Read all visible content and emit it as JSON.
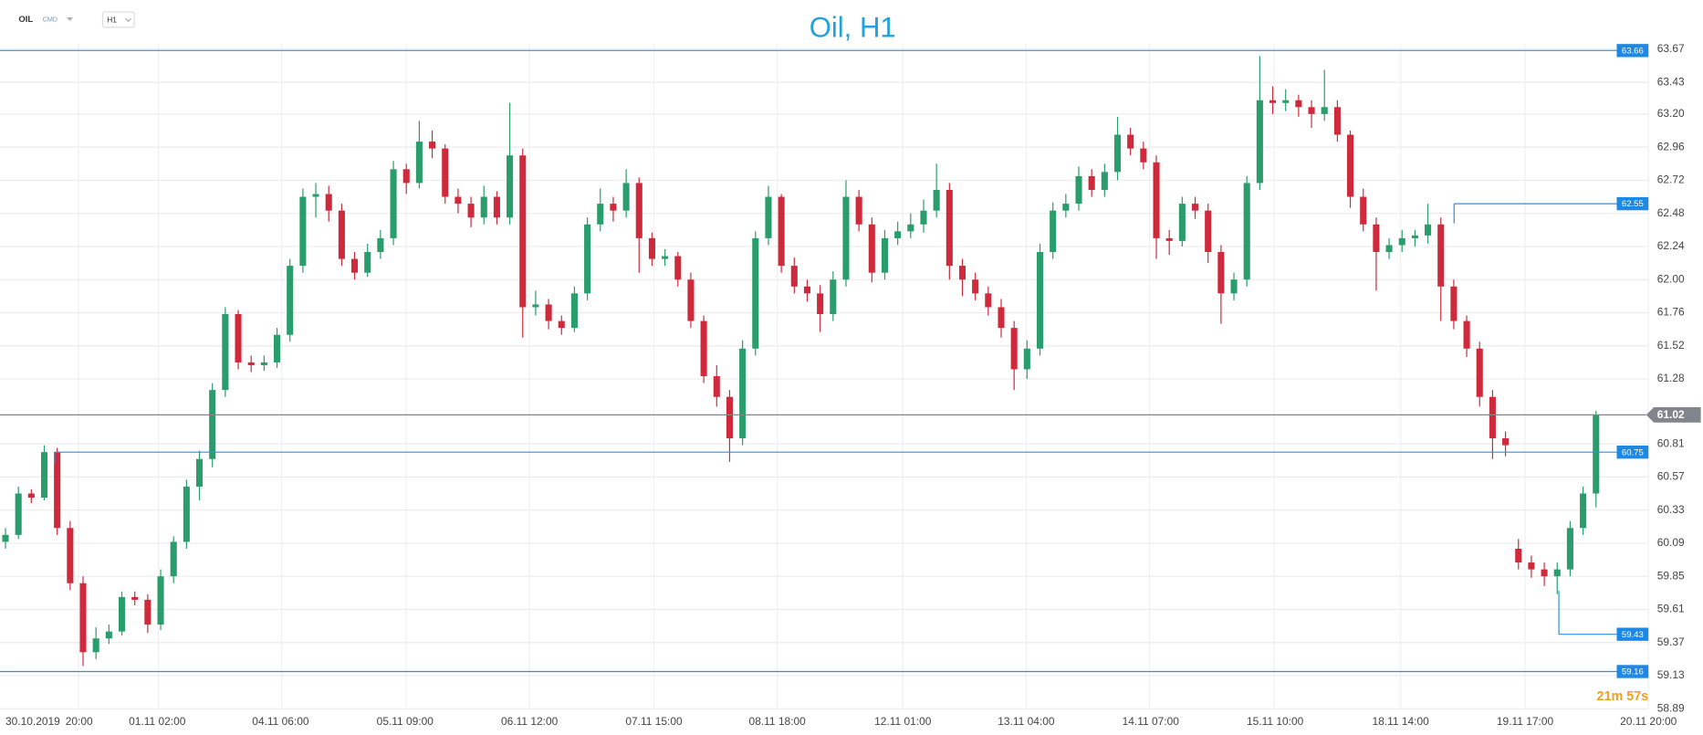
{
  "header": {
    "symbol": "OIL",
    "market": "CMD",
    "interval": "H1"
  },
  "countdown": "21m 57s",
  "chart_data": {
    "type": "candlestick",
    "title": "Oil, H1",
    "ylim": [
      58.89,
      63.67
    ],
    "yticks": [
      58.89,
      59.13,
      59.37,
      59.61,
      59.85,
      60.09,
      60.33,
      60.57,
      60.81,
      61.28,
      61.52,
      61.76,
      {
        "value": 62.0,
        "label": "62.00"
      },
      62.24,
      62.48,
      62.72,
      62.96,
      {
        "value": 63.2,
        "label": "63.20"
      },
      63.43,
      63.67
    ],
    "x_labels": [
      "30.10.2019",
      "20:00",
      "01.11  02:00",
      "04.11  06:00",
      "05.11  09:00",
      "06.11  12:00",
      "07.11  15:00",
      "08.11  18:00",
      "12.11  01:00",
      "13.11  04:00",
      "14.11  07:00",
      "15.11  10:00",
      "18.11  14:00",
      "19.11  17:00",
      "20.11  20:00"
    ],
    "up_color": "#2a9d6c",
    "down_color": "#cf2a3c",
    "level_color": "#2f8fe0",
    "levels": [
      63.66,
      62.55,
      60.75,
      59.43,
      59.16
    ],
    "current": 61.02,
    "current_color": "#80848c",
    "grid": true,
    "candles": [
      [
        60.1,
        60.2,
        60.05,
        60.15
      ],
      [
        60.15,
        60.5,
        60.12,
        60.45
      ],
      [
        60.45,
        60.48,
        60.38,
        60.42
      ],
      [
        60.42,
        60.8,
        60.4,
        60.75
      ],
      [
        60.75,
        60.78,
        60.15,
        60.2
      ],
      [
        60.2,
        60.25,
        59.75,
        59.8
      ],
      [
        59.8,
        59.85,
        59.2,
        59.3
      ],
      [
        59.3,
        59.48,
        59.25,
        59.4
      ],
      [
        59.4,
        59.5,
        59.36,
        59.45
      ],
      [
        59.45,
        59.74,
        59.42,
        59.7
      ],
      [
        59.7,
        59.74,
        59.64,
        59.68
      ],
      [
        59.68,
        59.72,
        59.44,
        59.5
      ],
      [
        59.5,
        59.9,
        59.46,
        59.85
      ],
      [
        59.85,
        60.14,
        59.8,
        60.1
      ],
      [
        60.1,
        60.55,
        60.05,
        60.5
      ],
      [
        60.5,
        60.76,
        60.4,
        60.7
      ],
      [
        60.7,
        61.25,
        60.64,
        61.2
      ],
      [
        61.2,
        61.8,
        61.15,
        61.75
      ],
      [
        61.75,
        61.78,
        61.35,
        61.4
      ],
      [
        61.4,
        61.45,
        61.33,
        61.38
      ],
      [
        61.38,
        61.45,
        61.34,
        61.4
      ],
      [
        61.4,
        61.65,
        61.36,
        61.6
      ],
      [
        61.6,
        62.15,
        61.55,
        62.1
      ],
      [
        62.1,
        62.66,
        62.05,
        62.6
      ],
      [
        62.6,
        62.7,
        62.45,
        62.62
      ],
      [
        62.62,
        62.68,
        62.42,
        62.5
      ],
      [
        62.5,
        62.55,
        62.1,
        62.15
      ],
      [
        62.15,
        62.2,
        62.0,
        62.05
      ],
      [
        62.05,
        62.26,
        62.02,
        62.2
      ],
      [
        62.2,
        62.36,
        62.15,
        62.3
      ],
      [
        62.3,
        62.86,
        62.25,
        62.8
      ],
      [
        62.8,
        62.84,
        62.62,
        62.7
      ],
      [
        62.7,
        63.15,
        62.66,
        63.0
      ],
      [
        63.0,
        63.08,
        62.88,
        62.95
      ],
      [
        62.95,
        62.98,
        62.55,
        62.6
      ],
      [
        62.6,
        62.66,
        62.48,
        62.55
      ],
      [
        62.55,
        62.6,
        62.38,
        62.45
      ],
      [
        62.45,
        62.68,
        62.4,
        62.6
      ],
      [
        62.6,
        62.64,
        62.4,
        62.45
      ],
      [
        62.45,
        63.28,
        62.4,
        62.9
      ],
      [
        62.9,
        62.95,
        61.58,
        61.8
      ],
      [
        61.8,
        61.92,
        61.74,
        61.82
      ],
      [
        61.82,
        61.86,
        61.64,
        61.7
      ],
      [
        61.7,
        61.74,
        61.6,
        61.65
      ],
      [
        61.65,
        61.95,
        61.62,
        61.9
      ],
      [
        61.9,
        62.45,
        61.85,
        62.4
      ],
      [
        62.4,
        62.66,
        62.35,
        62.55
      ],
      [
        62.55,
        62.6,
        62.42,
        62.5
      ],
      [
        62.5,
        62.8,
        62.45,
        62.7
      ],
      [
        62.7,
        62.74,
        62.05,
        62.3
      ],
      [
        62.3,
        62.34,
        62.1,
        62.15
      ],
      [
        62.15,
        62.22,
        62.1,
        62.17
      ],
      [
        62.17,
        62.2,
        61.95,
        62.0
      ],
      [
        62.0,
        62.05,
        61.65,
        61.7
      ],
      [
        61.7,
        61.74,
        61.25,
        61.3
      ],
      [
        61.3,
        61.38,
        61.08,
        61.15
      ],
      [
        61.15,
        61.2,
        60.68,
        60.85
      ],
      [
        60.85,
        61.56,
        60.8,
        61.5
      ],
      [
        61.5,
        62.35,
        61.45,
        62.3
      ],
      [
        62.3,
        62.68,
        62.25,
        62.6
      ],
      [
        62.6,
        62.62,
        62.05,
        62.1
      ],
      [
        62.1,
        62.16,
        61.9,
        61.95
      ],
      [
        61.95,
        62.0,
        61.84,
        61.9
      ],
      [
        61.9,
        61.96,
        61.62,
        61.75
      ],
      [
        61.75,
        62.06,
        61.7,
        62.0
      ],
      [
        62.0,
        62.72,
        61.95,
        62.6
      ],
      [
        62.6,
        62.65,
        62.35,
        62.4
      ],
      [
        62.4,
        62.45,
        61.98,
        62.05
      ],
      [
        62.05,
        62.36,
        62.0,
        62.3
      ],
      [
        62.3,
        62.42,
        62.25,
        62.35
      ],
      [
        62.35,
        62.48,
        62.3,
        62.4
      ],
      [
        62.4,
        62.58,
        62.34,
        62.5
      ],
      [
        62.5,
        62.84,
        62.45,
        62.65
      ],
      [
        62.65,
        62.7,
        62.0,
        62.1
      ],
      [
        62.1,
        62.15,
        61.88,
        62.0
      ],
      [
        62.0,
        62.05,
        61.85,
        61.9
      ],
      [
        61.9,
        61.95,
        61.74,
        61.8
      ],
      [
        61.8,
        61.86,
        61.58,
        61.65
      ],
      [
        61.65,
        61.7,
        61.2,
        61.35
      ],
      [
        61.35,
        61.56,
        61.28,
        61.5
      ],
      [
        61.5,
        62.26,
        61.45,
        62.2
      ],
      [
        62.2,
        62.56,
        62.15,
        62.5
      ],
      [
        62.5,
        62.62,
        62.45,
        62.55
      ],
      [
        62.55,
        62.82,
        62.5,
        62.75
      ],
      [
        62.75,
        62.8,
        62.6,
        62.65
      ],
      [
        62.65,
        62.84,
        62.6,
        62.78
      ],
      [
        62.78,
        63.18,
        62.72,
        63.05
      ],
      [
        63.05,
        63.1,
        62.9,
        62.95
      ],
      [
        62.95,
        63.0,
        62.8,
        62.85
      ],
      [
        62.85,
        62.9,
        62.15,
        62.3
      ],
      [
        62.3,
        62.36,
        62.18,
        62.28
      ],
      [
        62.28,
        62.6,
        62.24,
        62.55
      ],
      [
        62.55,
        62.6,
        62.44,
        62.5
      ],
      [
        62.5,
        62.55,
        62.12,
        62.2
      ],
      [
        62.2,
        62.25,
        61.68,
        61.9
      ],
      [
        61.9,
        62.05,
        61.85,
        62.0
      ],
      [
        62.0,
        62.75,
        61.95,
        62.7
      ],
      [
        62.7,
        63.62,
        62.65,
        63.3
      ],
      [
        63.3,
        63.4,
        63.2,
        63.28
      ],
      [
        63.28,
        63.38,
        63.22,
        63.3
      ],
      [
        63.3,
        63.34,
        63.18,
        63.25
      ],
      [
        63.25,
        63.3,
        63.1,
        63.2
      ],
      [
        63.2,
        63.52,
        63.15,
        63.25
      ],
      [
        63.25,
        63.3,
        63.0,
        63.05
      ],
      [
        63.05,
        63.08,
        62.52,
        62.6
      ],
      [
        62.6,
        62.66,
        62.35,
        62.4
      ],
      [
        62.4,
        62.45,
        61.92,
        62.2
      ],
      [
        62.2,
        62.3,
        62.15,
        62.25
      ],
      [
        62.25,
        62.36,
        62.2,
        62.3
      ],
      [
        62.3,
        62.36,
        62.24,
        62.32
      ],
      [
        62.32,
        62.55,
        62.26,
        62.4
      ],
      [
        62.4,
        62.45,
        61.7,
        61.95
      ],
      [
        61.95,
        62.0,
        61.64,
        61.7
      ],
      [
        61.7,
        61.74,
        61.44,
        61.5
      ],
      [
        61.5,
        61.55,
        61.08,
        61.15
      ],
      [
        61.15,
        61.2,
        60.7,
        60.85
      ],
      [
        60.85,
        60.9,
        60.72,
        60.8
      ],
      [
        60.05,
        60.12,
        59.9,
        59.95
      ],
      [
        59.95,
        60.0,
        59.84,
        59.9
      ],
      [
        59.9,
        59.95,
        59.78,
        59.85
      ],
      [
        59.85,
        59.95,
        59.72,
        59.9
      ],
      [
        59.9,
        60.25,
        59.85,
        60.2
      ],
      [
        60.2,
        60.5,
        60.15,
        60.45
      ],
      [
        60.45,
        61.05,
        60.35,
        61.02
      ]
    ]
  }
}
